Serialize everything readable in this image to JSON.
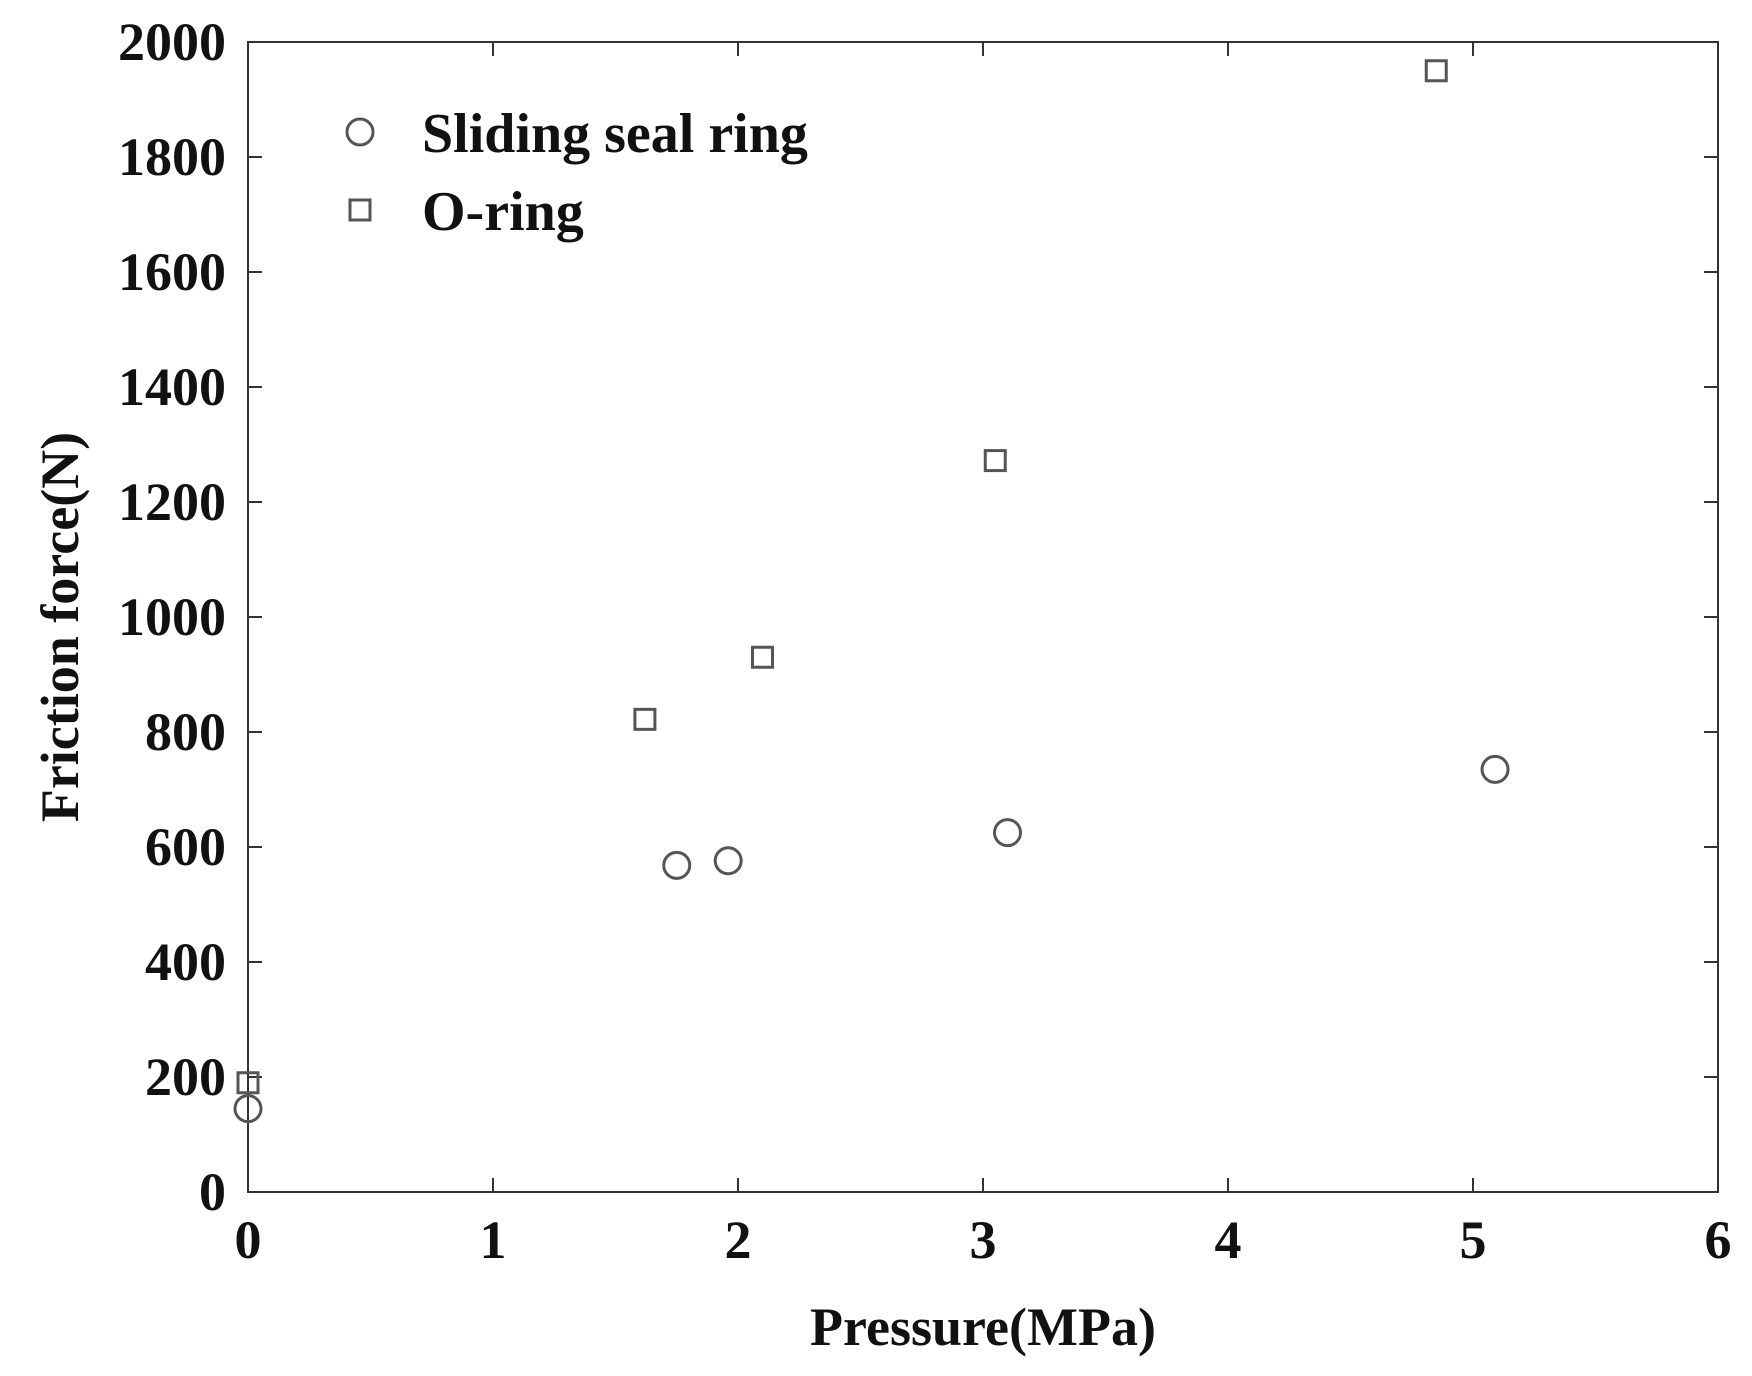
{
  "chart_data": {
    "type": "scatter",
    "title": "",
    "xlabel": "Pressure(MPa)",
    "ylabel": "Friction force(N)",
    "xlim": [
      0,
      6
    ],
    "ylim": [
      0,
      2000
    ],
    "x_ticks": [
      "0",
      "1",
      "2",
      "3",
      "4",
      "5",
      "6"
    ],
    "y_ticks": [
      "0",
      "200",
      "400",
      "600",
      "800",
      "1000",
      "1200",
      "1400",
      "1600",
      "1800",
      "2000"
    ],
    "grid": false,
    "legend_position": "top-left",
    "series": [
      {
        "name": "Sliding seal ring",
        "marker": "circle",
        "color": "#555555",
        "points": [
          {
            "x": 0.0,
            "y": 145
          },
          {
            "x": 1.75,
            "y": 568
          },
          {
            "x": 1.96,
            "y": 576
          },
          {
            "x": 3.1,
            "y": 625
          },
          {
            "x": 5.09,
            "y": 735
          }
        ]
      },
      {
        "name": "O-ring",
        "marker": "square",
        "color": "#555555",
        "points": [
          {
            "x": 0.0,
            "y": 190
          },
          {
            "x": 1.62,
            "y": 822
          },
          {
            "x": 2.1,
            "y": 930
          },
          {
            "x": 3.05,
            "y": 1272
          },
          {
            "x": 4.85,
            "y": 1950
          }
        ]
      }
    ]
  }
}
